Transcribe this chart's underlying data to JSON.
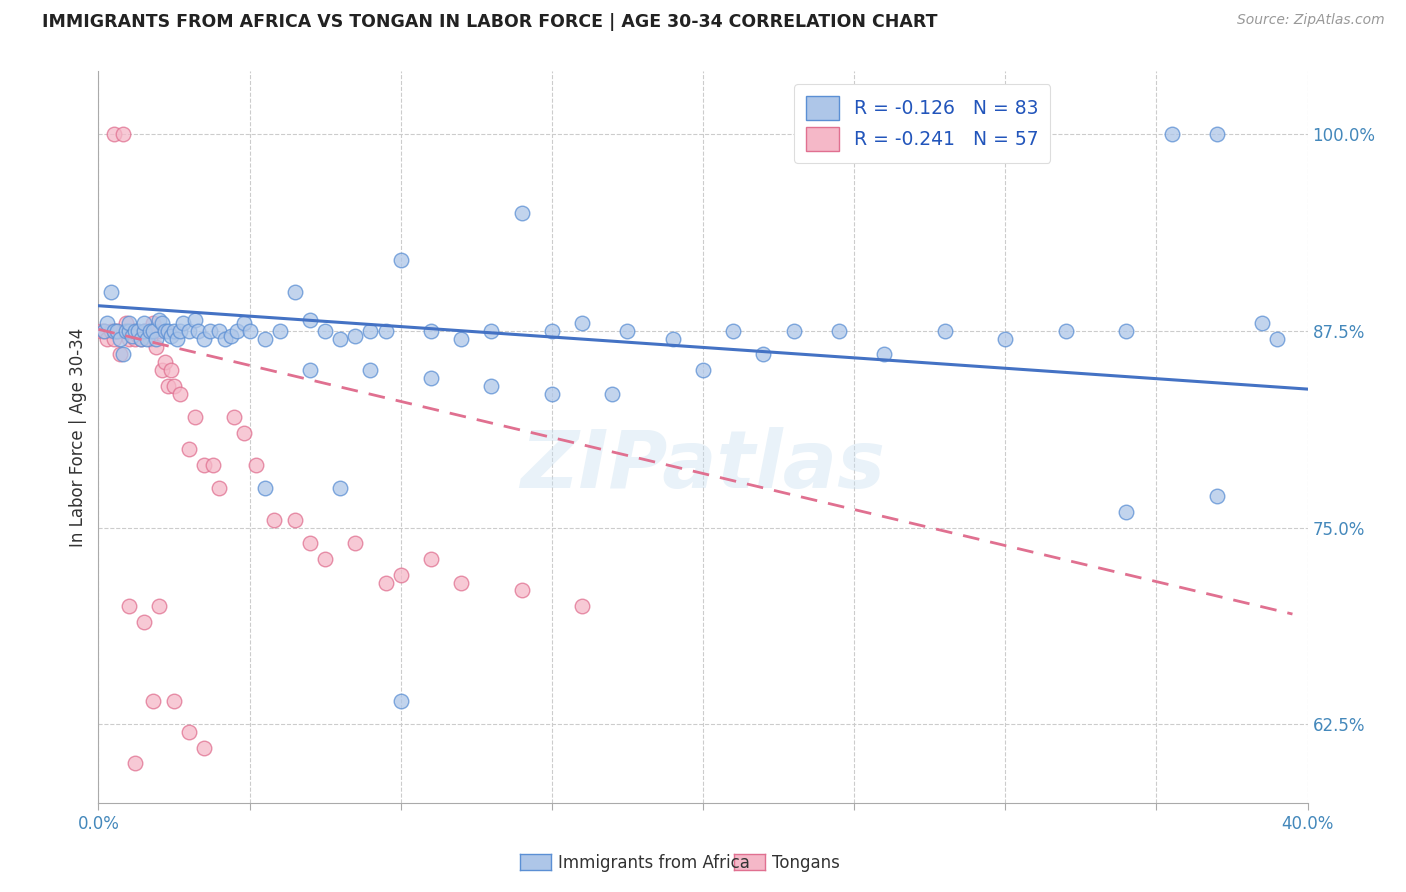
{
  "title": "IMMIGRANTS FROM AFRICA VS TONGAN IN LABOR FORCE | AGE 30-34 CORRELATION CHART",
  "source": "Source: ZipAtlas.com",
  "ylabel": "In Labor Force | Age 30-34",
  "xlim": [
    0.0,
    0.4
  ],
  "ylim": [
    0.575,
    1.04
  ],
  "xtick_positions": [
    0.0,
    0.05,
    0.1,
    0.15,
    0.2,
    0.25,
    0.3,
    0.35,
    0.4
  ],
  "xtick_labels": [
    "0.0%",
    "",
    "",
    "",
    "",
    "",
    "",
    "",
    "40.0%"
  ],
  "ytick_vals": [
    0.625,
    0.75,
    0.875,
    1.0
  ],
  "ytick_labels": [
    "62.5%",
    "75.0%",
    "87.5%",
    "100.0%"
  ],
  "legend_label1": "R = -0.126   N = 83",
  "legend_label2": "R = -0.241   N = 57",
  "color_africa_fill": "#aec6e8",
  "color_africa_edge": "#5b8fd4",
  "color_tonga_fill": "#f5b8c8",
  "color_tonga_edge": "#e07090",
  "color_africa_line": "#4472c4",
  "color_tonga_line": "#e07090",
  "watermark": "ZIPatlas",
  "africa_line_x": [
    0.0,
    0.4
  ],
  "africa_line_y": [
    0.891,
    0.838
  ],
  "tonga_line_x": [
    0.0,
    0.395
  ],
  "tonga_line_y": [
    0.876,
    0.695
  ],
  "africa_x": [
    0.002,
    0.003,
    0.004,
    0.005,
    0.006,
    0.007,
    0.008,
    0.009,
    0.01,
    0.01,
    0.011,
    0.012,
    0.013,
    0.014,
    0.015,
    0.015,
    0.016,
    0.017,
    0.018,
    0.019,
    0.02,
    0.021,
    0.022,
    0.023,
    0.024,
    0.025,
    0.026,
    0.027,
    0.028,
    0.03,
    0.032,
    0.033,
    0.035,
    0.037,
    0.04,
    0.042,
    0.044,
    0.046,
    0.048,
    0.05,
    0.055,
    0.06,
    0.065,
    0.07,
    0.075,
    0.08,
    0.085,
    0.09,
    0.095,
    0.1,
    0.11,
    0.12,
    0.13,
    0.14,
    0.15,
    0.16,
    0.175,
    0.19,
    0.2,
    0.21,
    0.22,
    0.23,
    0.245,
    0.26,
    0.28,
    0.3,
    0.32,
    0.34,
    0.355,
    0.37,
    0.385,
    0.39,
    0.07,
    0.09,
    0.11,
    0.13,
    0.15,
    0.17,
    0.055,
    0.08,
    0.34,
    0.37,
    0.1
  ],
  "africa_y": [
    0.875,
    0.88,
    0.9,
    0.875,
    0.875,
    0.87,
    0.86,
    0.875,
    0.875,
    0.88,
    0.872,
    0.875,
    0.875,
    0.87,
    0.875,
    0.88,
    0.87,
    0.875,
    0.875,
    0.87,
    0.882,
    0.88,
    0.875,
    0.875,
    0.872,
    0.875,
    0.87,
    0.875,
    0.88,
    0.875,
    0.882,
    0.875,
    0.87,
    0.875,
    0.875,
    0.87,
    0.872,
    0.875,
    0.88,
    0.875,
    0.87,
    0.875,
    0.9,
    0.882,
    0.875,
    0.87,
    0.872,
    0.875,
    0.875,
    0.92,
    0.875,
    0.87,
    0.875,
    0.95,
    0.875,
    0.88,
    0.875,
    0.87,
    0.85,
    0.875,
    0.86,
    0.875,
    0.875,
    0.86,
    0.875,
    0.87,
    0.875,
    0.875,
    1.0,
    1.0,
    0.88,
    0.87,
    0.85,
    0.85,
    0.845,
    0.84,
    0.835,
    0.835,
    0.775,
    0.775,
    0.76,
    0.77,
    0.64
  ],
  "tonga_x": [
    0.001,
    0.002,
    0.003,
    0.004,
    0.005,
    0.005,
    0.006,
    0.007,
    0.008,
    0.009,
    0.01,
    0.011,
    0.012,
    0.012,
    0.013,
    0.014,
    0.015,
    0.016,
    0.017,
    0.018,
    0.019,
    0.02,
    0.021,
    0.022,
    0.023,
    0.024,
    0.025,
    0.027,
    0.03,
    0.032,
    0.035,
    0.038,
    0.04,
    0.045,
    0.048,
    0.052,
    0.058,
    0.065,
    0.07,
    0.075,
    0.085,
    0.095,
    0.1,
    0.11,
    0.12,
    0.14,
    0.16,
    0.005,
    0.008,
    0.01,
    0.012,
    0.015,
    0.018,
    0.02,
    0.025,
    0.03,
    0.035
  ],
  "tonga_y": [
    0.875,
    0.875,
    0.87,
    0.875,
    0.875,
    0.87,
    0.875,
    0.86,
    0.875,
    0.88,
    0.87,
    0.875,
    0.875,
    0.87,
    0.872,
    0.87,
    0.875,
    0.875,
    0.87,
    0.88,
    0.865,
    0.875,
    0.85,
    0.855,
    0.84,
    0.85,
    0.84,
    0.835,
    0.8,
    0.82,
    0.79,
    0.79,
    0.775,
    0.82,
    0.81,
    0.79,
    0.755,
    0.755,
    0.74,
    0.73,
    0.74,
    0.715,
    0.72,
    0.73,
    0.715,
    0.71,
    0.7,
    1.0,
    1.0,
    0.7,
    0.6,
    0.69,
    0.64,
    0.7,
    0.64,
    0.62,
    0.61
  ]
}
